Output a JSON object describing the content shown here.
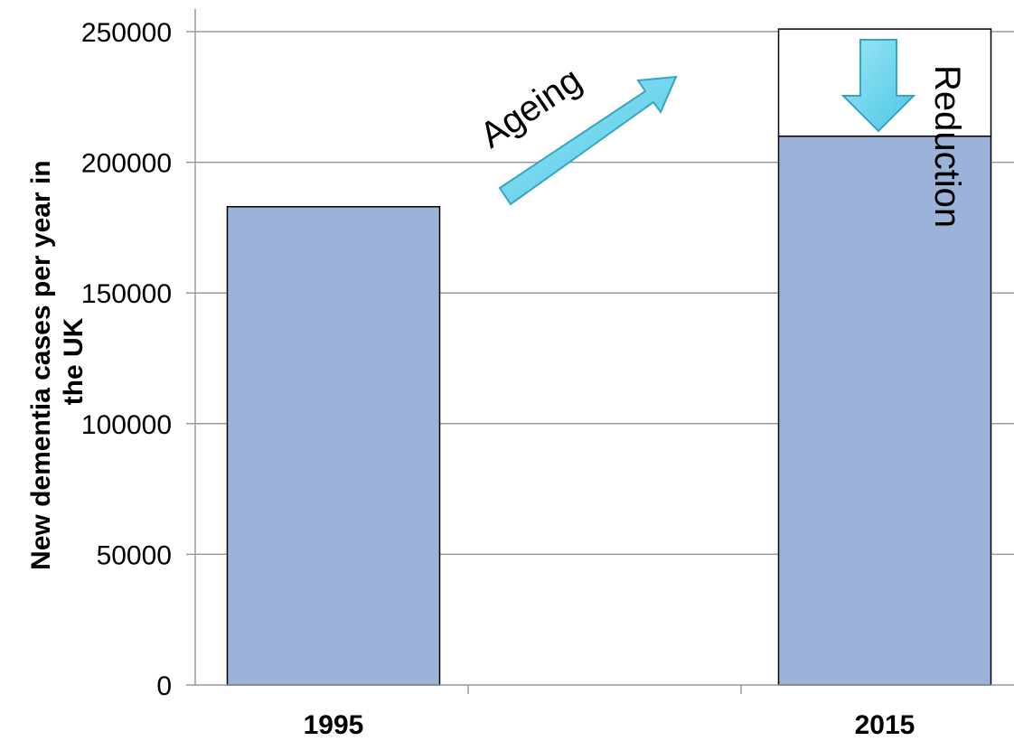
{
  "chart_data": {
    "type": "bar",
    "title": "",
    "xlabel": "",
    "ylabel": "New dementia cases per year in the UK",
    "categories": [
      "1995",
      "2015"
    ],
    "series": [
      {
        "values": [
          183000,
          210000
        ],
        "fill": "#9BB3D9"
      },
      {
        "values": [
          0,
          41000
        ],
        "fill": "#ffffff"
      }
    ],
    "stacked": true,
    "ylim": [
      0,
      250000
    ],
    "yticks": [
      "0",
      "50000",
      "100000",
      "150000",
      "200000",
      "250000"
    ],
    "grid": true,
    "annotations": [
      {
        "text": "Ageing",
        "arrow": "up-right"
      },
      {
        "text": "Reduction",
        "arrow": "down"
      }
    ],
    "colors": {
      "arrow_fill": "#7FD8EE",
      "arrow_stroke": "#35A6C2",
      "bar_stroke": "#000000",
      "grid": "#999999"
    }
  }
}
